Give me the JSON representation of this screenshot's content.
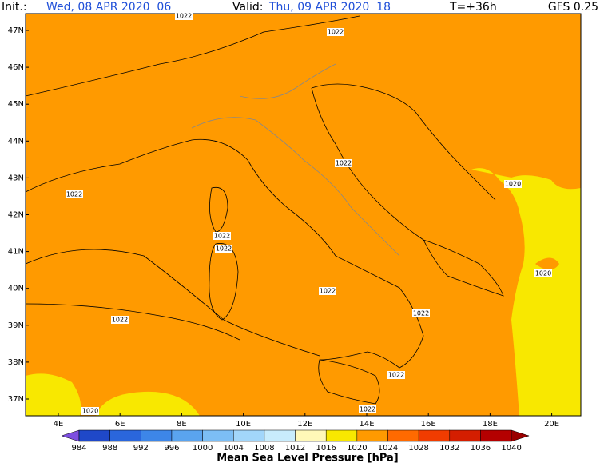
{
  "header": {
    "init_label": "Init.:",
    "init": "Wed, 08 APR 2020  06",
    "valid_label": "Valid:",
    "valid": "Thu, 09 APR 2020  18",
    "lead": "T=+36h",
    "model": "GFS 0.25"
  },
  "lat_labels": [
    "47N",
    "46N",
    "45N",
    "44N",
    "43N",
    "42N",
    "41N",
    "40N",
    "39N",
    "38N",
    "37N"
  ],
  "lon_labels": [
    "4E",
    "6E",
    "8E",
    "10E",
    "12E",
    "14E",
    "16E",
    "18E",
    "20E"
  ],
  "isobar_labels": [
    "1022",
    "1022",
    "1022",
    "1022",
    "1022",
    "1022",
    "1020",
    "1020",
    "1022",
    "1022",
    "1022",
    "1022",
    "1022",
    "1020"
  ],
  "colorbar": {
    "title": "Mean Sea Level Pressure [hPa]",
    "labels": [
      "984",
      "988",
      "992",
      "996",
      "1000",
      "1004",
      "1008",
      "1012",
      "1016",
      "1020",
      "1024",
      "1028",
      "1032",
      "1036",
      "1040"
    ],
    "colors": [
      "#7d4fe0",
      "#1f48c8",
      "#2a66dc",
      "#3d86e8",
      "#5aa4ef",
      "#7cbef5",
      "#a2d6fa",
      "#c8ecfc",
      "#fff8b8",
      "#f8e800",
      "#ff9a00",
      "#ff6a00",
      "#f03c00",
      "#d41e00",
      "#b40000",
      "#9a0000"
    ]
  }
}
